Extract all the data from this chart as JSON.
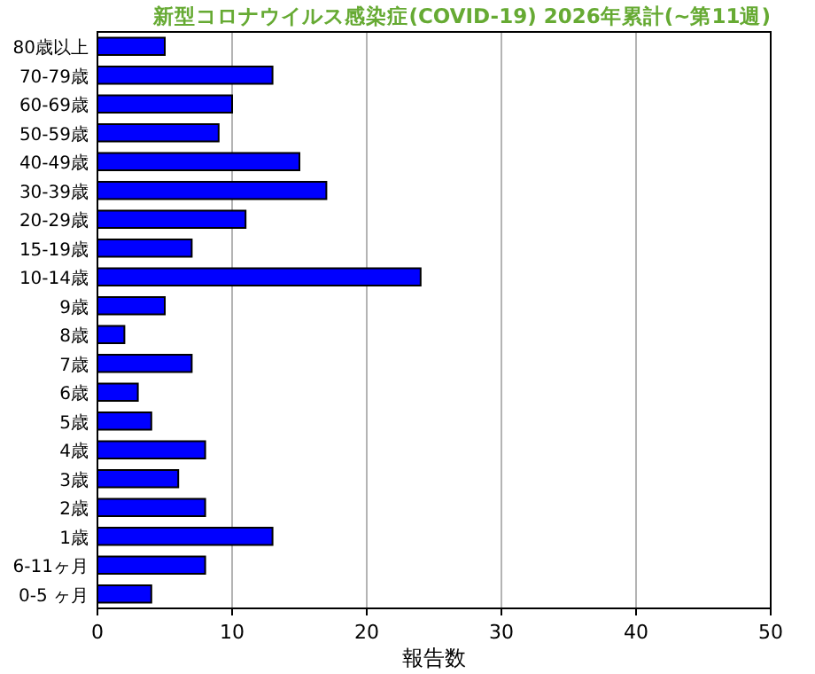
{
  "chart_data": {
    "type": "bar",
    "orientation": "horizontal",
    "title": "新型コロナウイルス感染症(COVID-19) 2026年累計(~第11週)",
    "xlabel": "報告数",
    "categories": [
      "80歳以上",
      "70-79歳",
      "60-69歳",
      "50-59歳",
      "40-49歳",
      "30-39歳",
      "20-29歳",
      "15-19歳",
      "10-14歳",
      "9歳",
      "8歳",
      "7歳",
      "6歳",
      "5歳",
      "4歳",
      "3歳",
      "2歳",
      "1歳",
      "6-11ヶ月",
      "0-5 ヶ月"
    ],
    "values": [
      5,
      13,
      10,
      9,
      15,
      17,
      11,
      7,
      24,
      5,
      2,
      7,
      3,
      4,
      8,
      6,
      8,
      13,
      8,
      4
    ],
    "color": "#0000ff",
    "xlim": [
      0,
      50
    ],
    "xticks": [
      0,
      10,
      20,
      30,
      40,
      50
    ],
    "grid": "x"
  }
}
